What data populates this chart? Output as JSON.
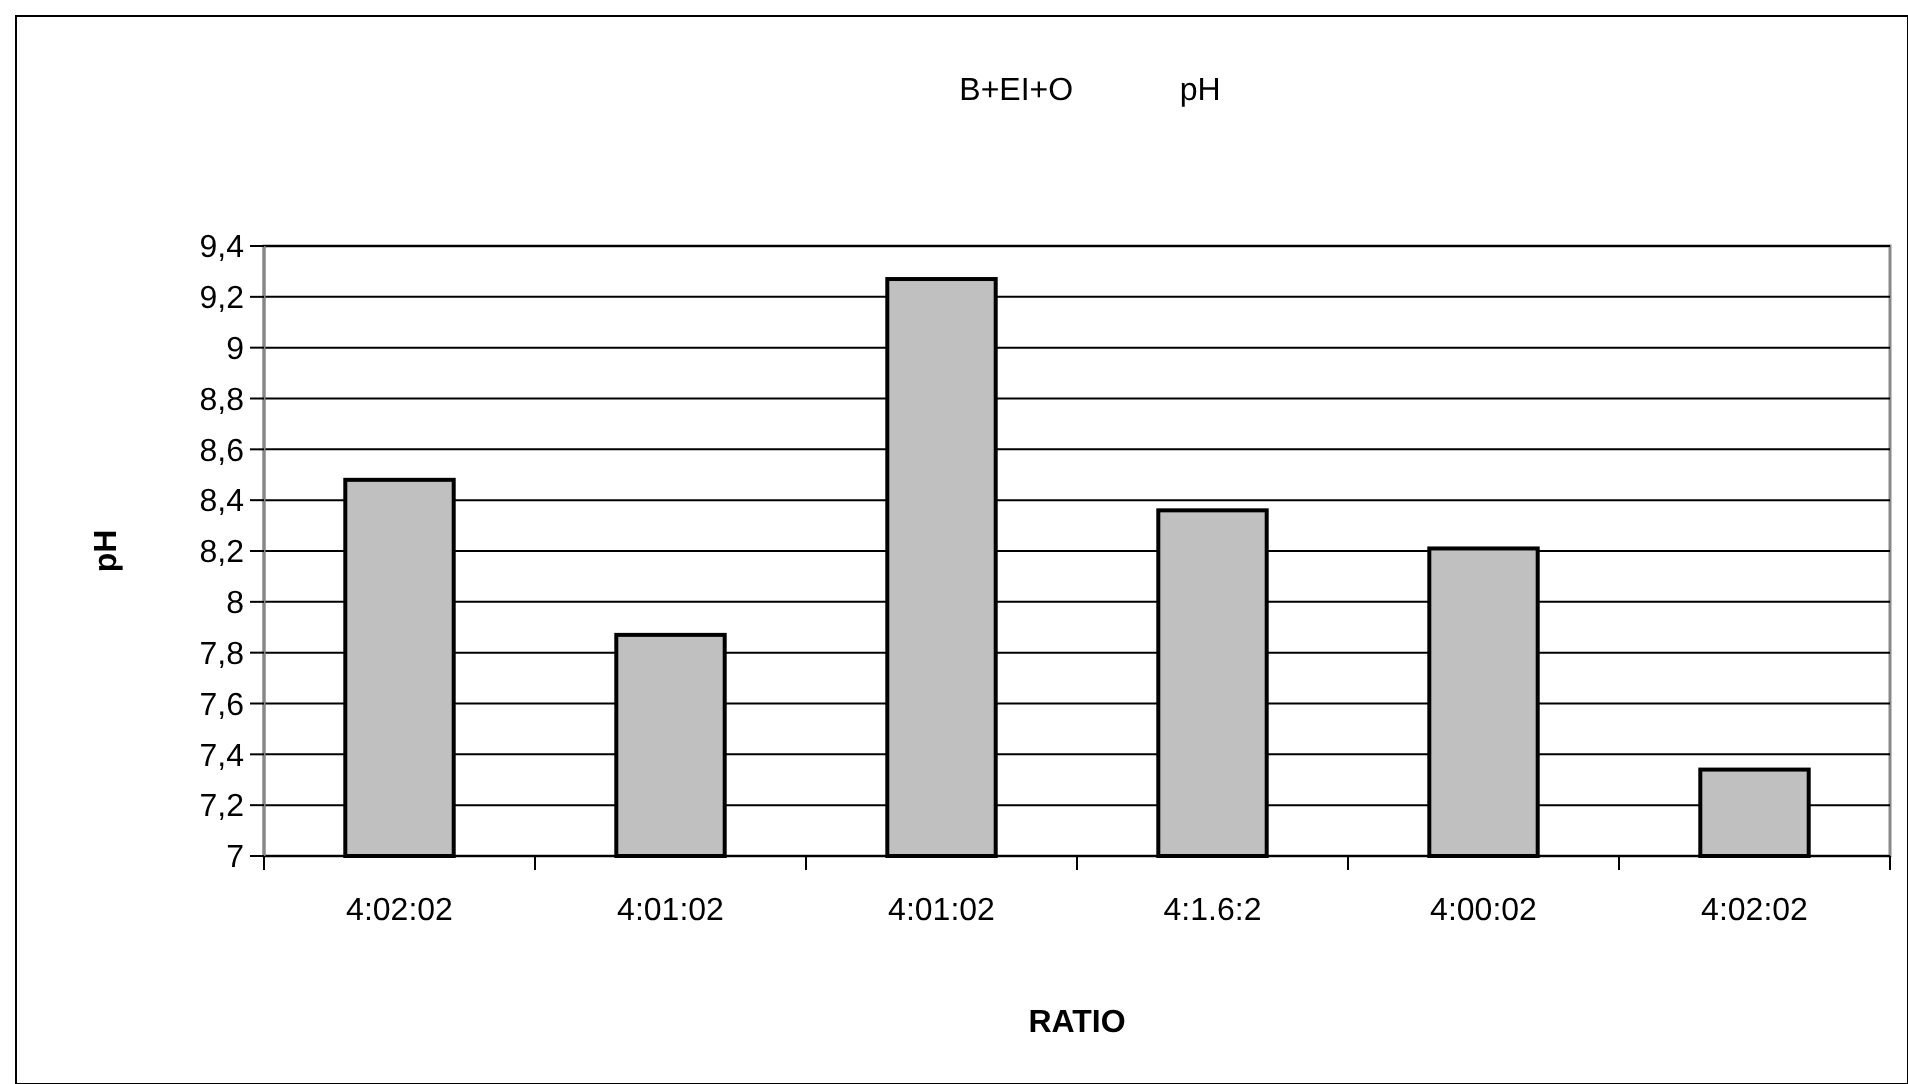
{
  "chart_data": {
    "type": "bar",
    "title": "B+EI+O            pH",
    "xlabel": "RATIO",
    "ylabel": "pH",
    "categories": [
      "4:02:02",
      "4:01:02",
      "4:01:02",
      "4:1.6:2",
      "4:00:02",
      "4:02:02"
    ],
    "values": [
      8.48,
      7.87,
      9.27,
      8.36,
      8.21,
      7.34
    ],
    "color": "#c0c0c0",
    "ylim": [
      7,
      9.4
    ],
    "yticks": [
      7,
      {
        "value": 7.2,
        "label": "7,2"
      },
      {
        "value": 7.4,
        "label": "7,4"
      },
      {
        "value": 7.6,
        "label": "7,6"
      },
      {
        "value": 7.8,
        "label": "7,8"
      },
      8,
      {
        "value": 8.2,
        "label": "8,2"
      },
      {
        "value": 8.4,
        "label": "8,4"
      },
      {
        "value": 8.6,
        "label": "8,6"
      },
      {
        "value": 8.8,
        "label": "8,8"
      },
      9,
      {
        "value": 9.2,
        "label": "9,2"
      },
      {
        "value": 9.4,
        "label": "9,4"
      }
    ],
    "grid": "y"
  }
}
